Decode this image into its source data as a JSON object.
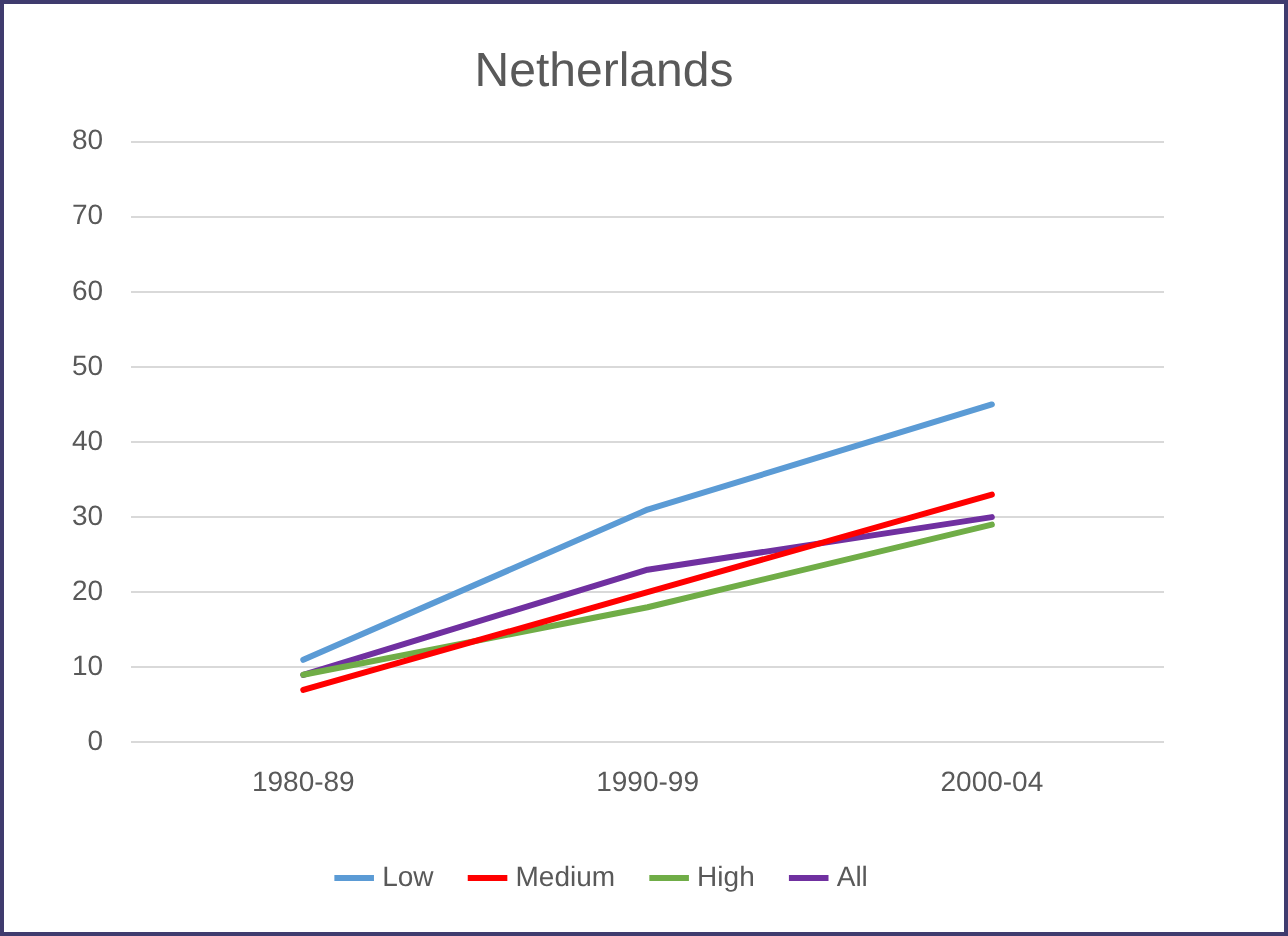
{
  "chart_data": {
    "type": "line",
    "title": "Netherlands",
    "categories": [
      "1980-89",
      "1990-99",
      "2000-04"
    ],
    "series": [
      {
        "name": "Low",
        "color": "#5b9bd5",
        "values": [
          11,
          31,
          45
        ]
      },
      {
        "name": "Medium",
        "color": "#ff0000",
        "values": [
          7,
          20,
          33
        ]
      },
      {
        "name": "High",
        "color": "#70ad47",
        "values": [
          9,
          18,
          29
        ]
      },
      {
        "name": "All",
        "color": "#7030a0",
        "values": [
          9,
          23,
          30
        ]
      }
    ],
    "ylim": [
      0,
      80
    ],
    "yticks": [
      0,
      10,
      20,
      30,
      40,
      50,
      60,
      70,
      80
    ],
    "grid": "y",
    "legend": "bottom",
    "marker": "none",
    "line_style": "solid"
  }
}
